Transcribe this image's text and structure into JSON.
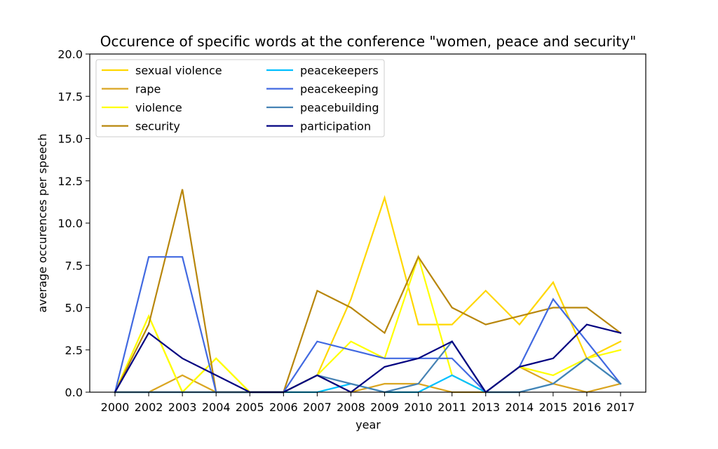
{
  "chart_data": {
    "type": "line",
    "title": "Occurence of specific words at the conference \"women, peace and security\"",
    "xlabel": "year",
    "ylabel": "average occurences per speech",
    "categories": [
      "2000",
      "2002",
      "2003",
      "2004",
      "2005",
      "2006",
      "2007",
      "2008",
      "2009",
      "2010",
      "2011",
      "2013",
      "2014",
      "2015",
      "2016",
      "2017"
    ],
    "ylim": [
      0,
      20
    ],
    "yticks": [
      "0.0",
      "2.5",
      "5.0",
      "7.5",
      "10.0",
      "12.5",
      "15.0",
      "17.5",
      "20.0"
    ],
    "grid": false,
    "legend_position": "top-left",
    "series": [
      {
        "name": "sexual violence",
        "color": "#FFD700",
        "values": [
          0,
          4.5,
          0,
          2,
          0,
          0,
          1,
          5.5,
          11.5,
          4,
          4,
          6,
          4,
          6.5,
          2,
          3
        ]
      },
      {
        "name": "rape",
        "color": "#DAA520",
        "values": [
          0,
          0,
          1,
          0,
          0,
          0,
          1,
          0,
          0.5,
          0.5,
          0,
          0,
          1.5,
          0.5,
          0,
          0.5
        ]
      },
      {
        "name": "violence",
        "color": "#FFFF00",
        "values": [
          0,
          4.5,
          0,
          2,
          0,
          0,
          1,
          3,
          2,
          8,
          1,
          0,
          1.5,
          1,
          2,
          2.5
        ]
      },
      {
        "name": "security",
        "color": "#B8860B",
        "values": [
          0,
          4,
          12,
          0,
          0,
          0,
          6,
          5,
          3.5,
          8,
          5,
          4,
          4.5,
          5,
          5,
          3.5
        ]
      },
      {
        "name": "peacekeepers",
        "color": "#00BFFF",
        "values": [
          0,
          0,
          0,
          0,
          0,
          0,
          0,
          0.5,
          0,
          0,
          1,
          0,
          0,
          0.5,
          2,
          0.5
        ]
      },
      {
        "name": "peacekeeping",
        "color": "#4169E1",
        "values": [
          0,
          8,
          8,
          0,
          0,
          0,
          3,
          2.5,
          2,
          2,
          2,
          0,
          1.5,
          5.5,
          3,
          0.5
        ]
      },
      {
        "name": "peacebuilding",
        "color": "#4682B4",
        "values": [
          0,
          0,
          0,
          0,
          0,
          0,
          1,
          0.5,
          0,
          0.5,
          3,
          0,
          0,
          0.5,
          2,
          0.5
        ]
      },
      {
        "name": "participation",
        "color": "#000080",
        "values": [
          0,
          3.5,
          2,
          1,
          0,
          0,
          1,
          0,
          1.5,
          2,
          3,
          0,
          1.5,
          2,
          4,
          3.5
        ]
      }
    ]
  }
}
